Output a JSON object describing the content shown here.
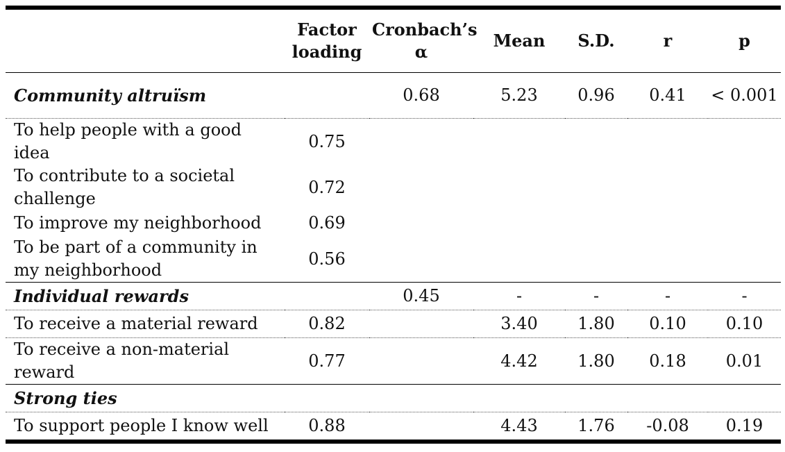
{
  "headers": [
    "",
    "Factor loading",
    "Cronbach’s α",
    "Mean",
    "S.D.",
    "r",
    "p"
  ],
  "groups": [
    {
      "label": "Community altruïsm",
      "stats": [
        "",
        "0.68",
        "5.23",
        "0.96",
        "0.41",
        "< 0.001"
      ],
      "items": [
        {
          "label": "To help people with a good idea",
          "loading": "0.75",
          "stats": [
            "",
            "",
            "",
            "",
            ""
          ]
        },
        {
          "label": "To contribute to a societal challenge",
          "loading": "0.72",
          "stats": [
            "",
            "",
            "",
            "",
            ""
          ]
        },
        {
          "label": "To improve my neighborhood",
          "loading": "0.69",
          "stats": [
            "",
            "",
            "",
            "",
            ""
          ]
        },
        {
          "label": "To be part of a community in my neighborhood",
          "loading": "0.56",
          "stats": [
            "",
            "",
            "",
            "",
            ""
          ]
        }
      ]
    },
    {
      "label": "Individual rewards",
      "stats": [
        "",
        "0.45",
        "-",
        "-",
        "-",
        "-"
      ],
      "items": [
        {
          "label": "To receive a material reward",
          "loading": "0.82",
          "stats": [
            "",
            "3.40",
            "1.80",
            "0.10",
            "0.10"
          ]
        },
        {
          "label": "To receive a non-material reward",
          "loading": "0.77",
          "stats": [
            "",
            "4.42",
            "1.80",
            "0.18",
            "0.01"
          ]
        }
      ]
    },
    {
      "label": "Strong ties",
      "stats": [
        "",
        "",
        "",
        "",
        "",
        ""
      ],
      "items": [
        {
          "label": "To support people I know well",
          "loading": "0.88",
          "stats": [
            "",
            "4.43",
            "1.76",
            "-0.08",
            "0.19"
          ]
        }
      ]
    }
  ]
}
